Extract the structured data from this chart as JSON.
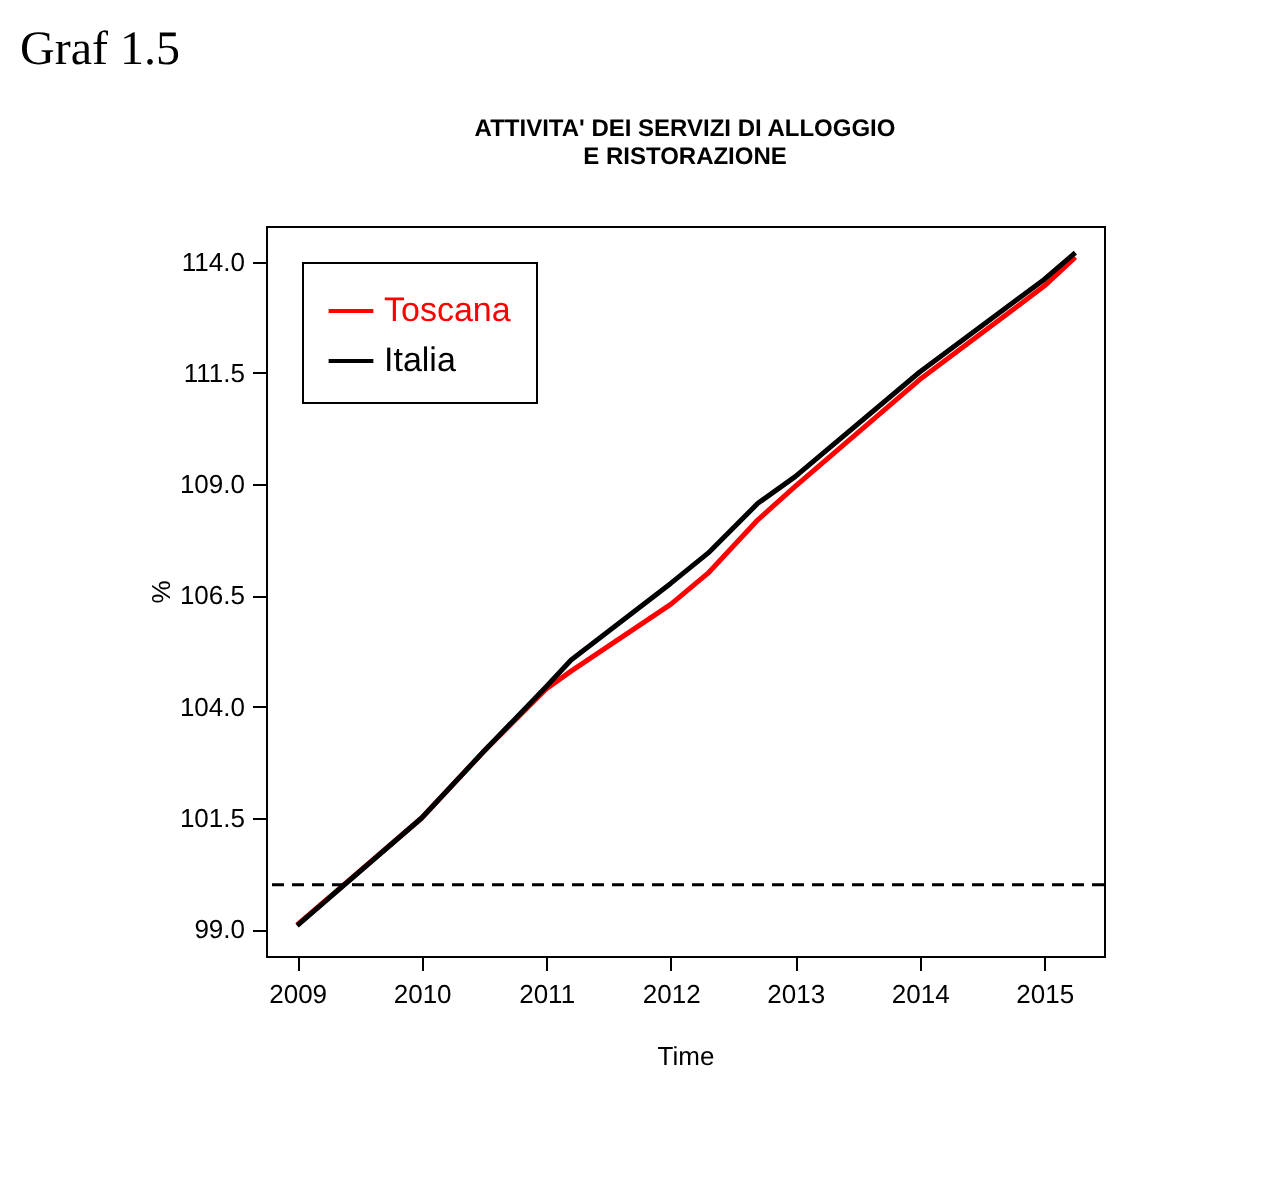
{
  "chart_data": {
    "type": "line",
    "title": "ATTIVITA' DEI SERVIZI DI ALLOGGIO\nE RISTORAZIONE",
    "xlabel": "Time",
    "ylabel": "%",
    "annotations": [
      "Graf 1.5"
    ],
    "xlim": [
      2008.75,
      2015.48
    ],
    "xticks": [
      2009,
      2010,
      2011,
      2012,
      2013,
      2014,
      2015
    ],
    "ylim": [
      98.4,
      114.8
    ],
    "yticks": [
      {
        "value": 99,
        "label": "99.0"
      },
      {
        "value": 101.5,
        "label": "101.5"
      },
      {
        "value": 104,
        "label": "104.0"
      },
      {
        "value": 106.5,
        "label": "106.5"
      },
      {
        "value": 109,
        "label": "109.0"
      },
      {
        "value": 111.5,
        "label": "111.5"
      },
      {
        "value": 114,
        "label": "114.0"
      }
    ],
    "grid": false,
    "legend": "top left",
    "line_style": "solid",
    "ref_lines": [
      {
        "axis": "y",
        "value": 100,
        "line_style": "dashed",
        "color": "#000000"
      }
    ],
    "series": [
      {
        "name": "Toscana",
        "color": "#ff0000",
        "x": [
          2009,
          2010,
          2010.5,
          2011,
          2011.2,
          2012,
          2012.3,
          2012.7,
          2013,
          2014,
          2015,
          2015.25
        ],
        "values": [
          99.1,
          101.5,
          103.0,
          104.4,
          104.8,
          106.3,
          107.0,
          108.2,
          108.95,
          111.35,
          113.45,
          114.1
        ]
      },
      {
        "name": "Italia",
        "color": "#000000",
        "x": [
          2009,
          2010,
          2010.5,
          2011,
          2011.2,
          2012,
          2012.3,
          2012.7,
          2013,
          2014,
          2015,
          2015.25
        ],
        "values": [
          99.08,
          101.5,
          103.0,
          104.45,
          105.05,
          106.77,
          107.45,
          108.57,
          109.17,
          111.52,
          113.6,
          114.2
        ]
      }
    ]
  }
}
